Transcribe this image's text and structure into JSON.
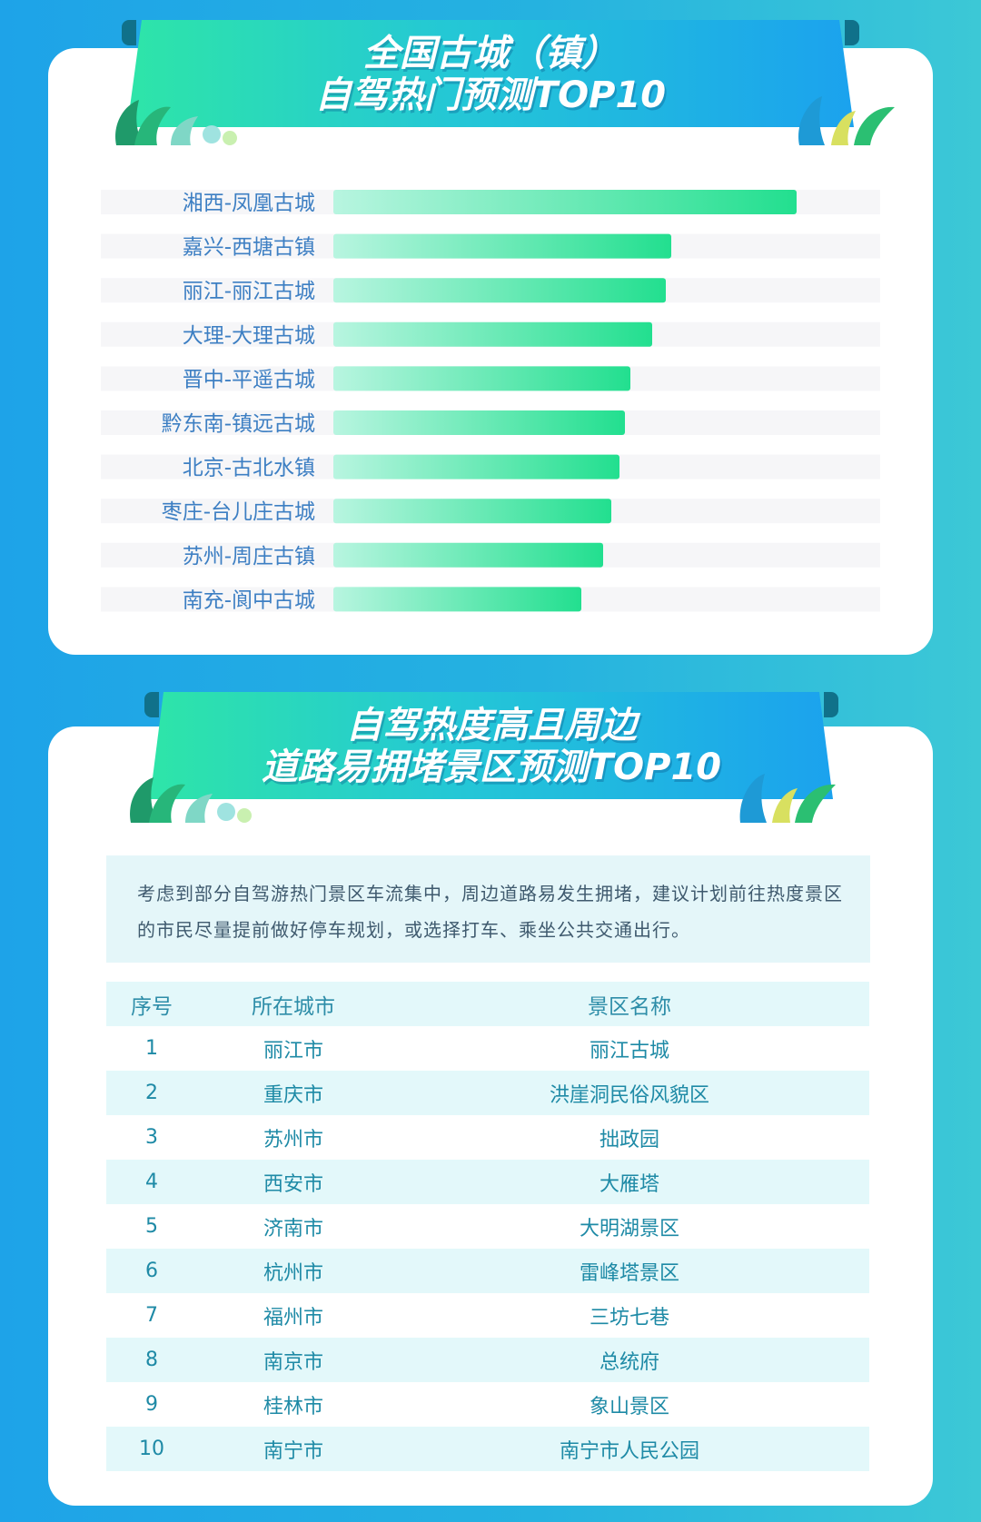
{
  "section1": {
    "title_line1": "全国古城（镇）",
    "title_line2": "自驾热门预测TOP10"
  },
  "section2": {
    "title_line1": "自驾热度高且周边",
    "title_line2": "道路易拥堵景区预测TOP10",
    "notice": "考虑到部分自驾游热门景区车流集中，周边道路易发生拥堵，建议计划前往热度景区的市民尽量提前做好停车规划，或选择打车、乘坐公共交通出行。"
  },
  "colors": {
    "bar_start": "#b8f5e0",
    "bar_end": "#22df8f",
    "bar_track": "#f6f6f8",
    "label": "#3d7fc3",
    "table_text": "#1e8aa6",
    "stripe": "#e3f8fa"
  },
  "chart_data": {
    "type": "bar",
    "orientation": "horizontal",
    "categories": [
      "湘西-凤凰古城",
      "嘉兴-西塘古镇",
      "丽江-丽江古城",
      "大理-大理古城",
      "晋中-平遥古城",
      "黔东南-镇远古城",
      "北京-古北水镇",
      "枣庄-台儿庄古城",
      "苏州-周庄古镇",
      "南充-阆中古城"
    ],
    "values": [
      85,
      62,
      61,
      58.5,
      54.5,
      53.5,
      52.5,
      51,
      49.5,
      45.5
    ],
    "xlim": [
      0,
      100
    ],
    "axis_labels_shown": false,
    "grid": false
  },
  "table": {
    "headers": [
      "序号",
      "所在城市",
      "景区名称"
    ],
    "rows": [
      [
        "1",
        "丽江市",
        "丽江古城"
      ],
      [
        "2",
        "重庆市",
        "洪崖洞民俗风貌区"
      ],
      [
        "3",
        "苏州市",
        "拙政园"
      ],
      [
        "4",
        "西安市",
        "大雁塔"
      ],
      [
        "5",
        "济南市",
        "大明湖景区"
      ],
      [
        "6",
        "杭州市",
        "雷峰塔景区"
      ],
      [
        "7",
        "福州市",
        "三坊七巷"
      ],
      [
        "8",
        "南京市",
        "总统府"
      ],
      [
        "9",
        "桂林市",
        "象山景区"
      ],
      [
        "10",
        "南宁市",
        "南宁市人民公园"
      ]
    ]
  },
  "icons": [
    "leaf-cluster-icon"
  ]
}
